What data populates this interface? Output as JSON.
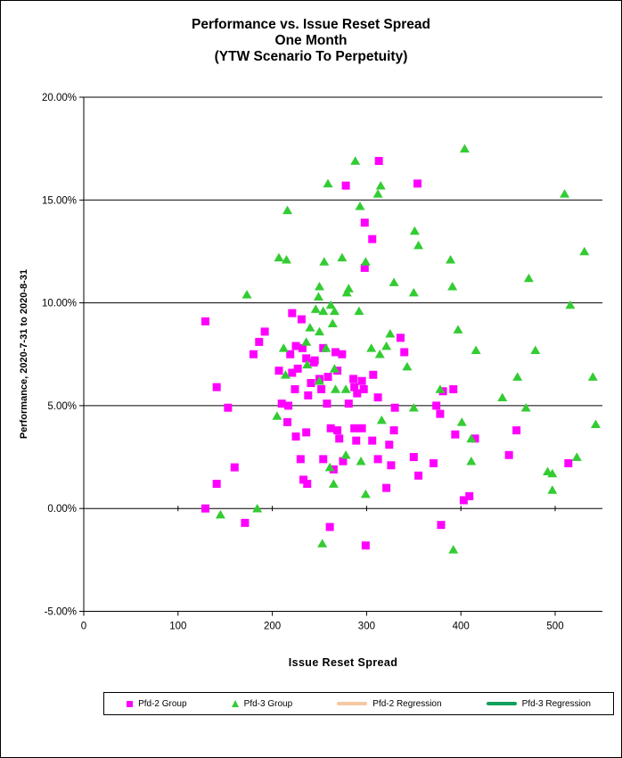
{
  "chart_data": {
    "type": "scatter",
    "title_lines": [
      "Performance vs. Issue Reset Spread",
      "One Month",
      "(YTW Scenario To Perpetuity)"
    ],
    "xlabel": "Issue Reset Spread",
    "ylabel": "Performance, 2020-7-31 to 2020-8-31",
    "xlim": [
      0,
      550
    ],
    "ylim": [
      -5,
      20
    ],
    "x_ticks": [
      0,
      100,
      200,
      300,
      400,
      500
    ],
    "y_ticks": [
      "20.00%",
      "15.00%",
      "10.00%",
      "5.00%",
      "0.00%",
      "-5.00%"
    ],
    "y_tick_values": [
      20,
      15,
      10,
      5,
      0,
      -5
    ],
    "grid": "horizontal-black",
    "legend_position": "bottom",
    "axis_color": "#000000",
    "background_color": "#FFFFFF",
    "series": [
      {
        "name": "Pfd-2 Group",
        "marker": "square",
        "color": "#FF00FF",
        "points": [
          [
            278,
            15.7
          ],
          [
            313,
            16.9
          ],
          [
            354,
            15.8
          ],
          [
            298,
            13.9
          ],
          [
            306,
            13.1
          ],
          [
            298,
            11.7
          ],
          [
            129,
            9.1
          ],
          [
            221,
            9.5
          ],
          [
            231,
            9.2
          ],
          [
            192,
            8.6
          ],
          [
            186,
            8.1
          ],
          [
            180,
            7.5
          ],
          [
            219,
            7.5
          ],
          [
            225,
            7.9
          ],
          [
            232,
            7.8
          ],
          [
            236,
            7.3
          ],
          [
            245,
            7.2
          ],
          [
            254,
            7.8
          ],
          [
            267,
            7.6
          ],
          [
            274,
            7.5
          ],
          [
            207,
            6.7
          ],
          [
            221,
            6.6
          ],
          [
            227,
            6.8
          ],
          [
            244,
            7.1
          ],
          [
            250,
            6.3
          ],
          [
            259,
            6.4
          ],
          [
            269,
            6.7
          ],
          [
            241,
            6.1
          ],
          [
            224,
            5.8
          ],
          [
            238,
            5.5
          ],
          [
            252,
            5.8
          ],
          [
            286,
            6.3
          ],
          [
            295,
            6.2
          ],
          [
            287,
            5.9
          ],
          [
            297,
            5.8
          ],
          [
            307,
            6.5
          ],
          [
            336,
            8.3
          ],
          [
            340,
            7.6
          ],
          [
            141,
            5.9
          ],
          [
            153,
            4.9
          ],
          [
            210,
            5.1
          ],
          [
            217,
            5.0
          ],
          [
            258,
            5.1
          ],
          [
            281,
            5.1
          ],
          [
            312,
            5.4
          ],
          [
            290,
            5.6
          ],
          [
            381,
            5.7
          ],
          [
            392,
            5.8
          ],
          [
            374,
            5.0
          ],
          [
            330,
            4.9
          ],
          [
            378,
            4.6
          ],
          [
            216,
            4.2
          ],
          [
            225,
            3.5
          ],
          [
            236,
            3.7
          ],
          [
            262,
            3.9
          ],
          [
            269,
            3.8
          ],
          [
            271,
            3.4
          ],
          [
            287,
            3.9
          ],
          [
            295,
            3.9
          ],
          [
            329,
            3.8
          ],
          [
            394,
            3.6
          ],
          [
            415,
            3.4
          ],
          [
            459,
            3.8
          ],
          [
            289,
            3.3
          ],
          [
            306,
            3.3
          ],
          [
            324,
            3.1
          ],
          [
            160,
            2.0
          ],
          [
            141,
            1.2
          ],
          [
            230,
            2.4
          ],
          [
            254,
            2.4
          ],
          [
            275,
            2.3
          ],
          [
            265,
            1.9
          ],
          [
            233,
            1.4
          ],
          [
            237,
            1.2
          ],
          [
            312,
            2.4
          ],
          [
            326,
            2.1
          ],
          [
            350,
            2.5
          ],
          [
            371,
            2.2
          ],
          [
            355,
            1.6
          ],
          [
            451,
            2.6
          ],
          [
            514,
            2.2
          ],
          [
            321,
            1.0
          ],
          [
            403,
            0.4
          ],
          [
            409,
            0.6
          ],
          [
            129,
            0.0
          ],
          [
            171,
            -0.7
          ],
          [
            261,
            -0.9
          ],
          [
            379,
            -0.8
          ],
          [
            299,
            -1.8
          ]
        ]
      },
      {
        "name": "Pfd-3 Group",
        "marker": "triangle",
        "color": "#33CC33",
        "points": [
          [
            404,
            17.5
          ],
          [
            288,
            16.9
          ],
          [
            259,
            15.8
          ],
          [
            315,
            15.7
          ],
          [
            312,
            15.3
          ],
          [
            510,
            15.3
          ],
          [
            293,
            14.7
          ],
          [
            216,
            14.5
          ],
          [
            351,
            13.5
          ],
          [
            355,
            12.8
          ],
          [
            207,
            12.2
          ],
          [
            215,
            12.1
          ],
          [
            255,
            12.0
          ],
          [
            274,
            12.2
          ],
          [
            299,
            12.0
          ],
          [
            389,
            12.1
          ],
          [
            531,
            12.5
          ],
          [
            281,
            10.7
          ],
          [
            173,
            10.4
          ],
          [
            250,
            10.8
          ],
          [
            249,
            10.3
          ],
          [
            279,
            10.5
          ],
          [
            329,
            11.0
          ],
          [
            350,
            10.5
          ],
          [
            391,
            10.8
          ],
          [
            472,
            11.2
          ],
          [
            516,
            9.9
          ],
          [
            292,
            9.6
          ],
          [
            246,
            9.7
          ],
          [
            254,
            9.6
          ],
          [
            262,
            9.9
          ],
          [
            266,
            9.6
          ],
          [
            240,
            8.8
          ],
          [
            250,
            8.6
          ],
          [
            264,
            9.0
          ],
          [
            236,
            8.1
          ],
          [
            212,
            7.8
          ],
          [
            325,
            8.5
          ],
          [
            397,
            8.7
          ],
          [
            305,
            7.8
          ],
          [
            321,
            7.9
          ],
          [
            314,
            7.5
          ],
          [
            416,
            7.7
          ],
          [
            479,
            7.7
          ],
          [
            257,
            7.8
          ],
          [
            237,
            7.0
          ],
          [
            266,
            6.8
          ],
          [
            343,
            6.9
          ],
          [
            460,
            6.4
          ],
          [
            540,
            6.4
          ],
          [
            214,
            6.5
          ],
          [
            250,
            6.2
          ],
          [
            267,
            5.8
          ],
          [
            278,
            5.8
          ],
          [
            378,
            5.8
          ],
          [
            444,
            5.4
          ],
          [
            205,
            4.5
          ],
          [
            350,
            4.9
          ],
          [
            469,
            4.9
          ],
          [
            316,
            4.3
          ],
          [
            401,
            4.2
          ],
          [
            411,
            3.4
          ],
          [
            543,
            4.1
          ],
          [
            278,
            2.6
          ],
          [
            294,
            2.3
          ],
          [
            411,
            2.3
          ],
          [
            523,
            2.5
          ],
          [
            261,
            2.0
          ],
          [
            492,
            1.8
          ],
          [
            497,
            1.7
          ],
          [
            265,
            1.2
          ],
          [
            497,
            0.9
          ],
          [
            299,
            0.7
          ],
          [
            184,
            0.0
          ],
          [
            145,
            -0.3
          ],
          [
            253,
            -1.7
          ],
          [
            392,
            -2.0
          ]
        ]
      },
      {
        "name": "Pfd-2 Regression",
        "marker": "line",
        "color": "#F5C9A0",
        "points": []
      },
      {
        "name": "Pfd-3 Regression",
        "marker": "line",
        "color": "#10A05C",
        "points": []
      }
    ]
  }
}
